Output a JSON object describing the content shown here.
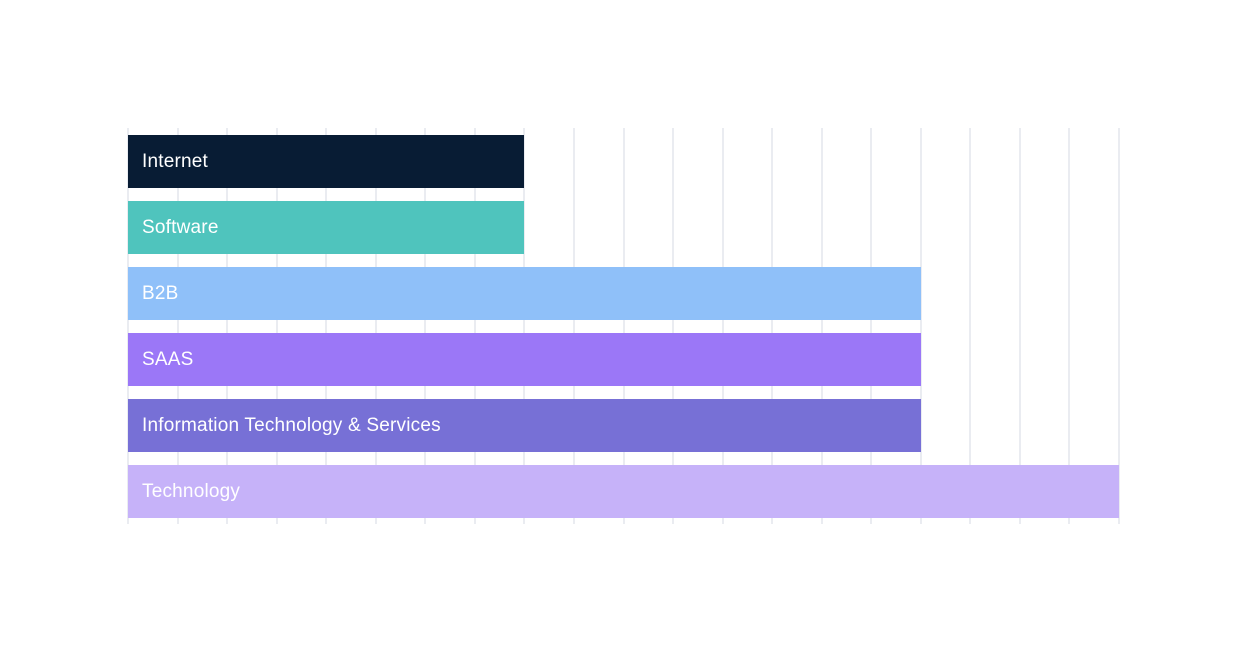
{
  "canvas": {
    "background": "#ffffff",
    "gridline_color": "#eaecf1",
    "bar_label_color": "#ffffff"
  },
  "chart_data": {
    "type": "bar",
    "orientation": "horizontal",
    "title": "",
    "xlabel": "",
    "ylabel": "",
    "categories": [
      "Internet",
      "Software",
      "B2B",
      "SAAS",
      "Information Technology & Services",
      "Technology"
    ],
    "values": [
      2,
      2,
      4,
      4,
      4,
      5
    ],
    "colors": [
      "#081c34",
      "#4fc4bd",
      "#8fc0f9",
      "#9b77f7",
      "#7770d6",
      "#c6b2f9"
    ],
    "xlim": [
      0,
      5
    ],
    "gridline_step": 0.25,
    "grid": "vertical",
    "axis_tick_labels_visible": false,
    "legend": "none",
    "label_position": "inside-left"
  }
}
